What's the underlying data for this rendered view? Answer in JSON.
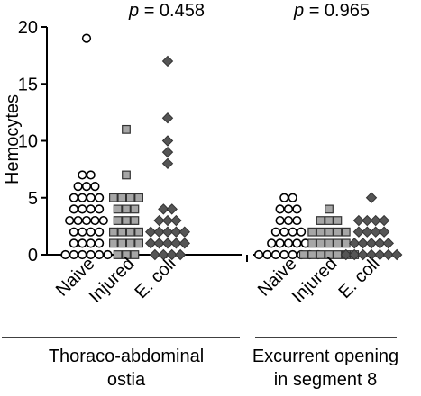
{
  "chart_data": {
    "type": "scatter",
    "ylabel": "Hemocytes",
    "ylim": [
      0,
      20
    ],
    "yticks": [
      "0",
      "5",
      "10",
      "15",
      "20"
    ],
    "grid": false,
    "groups": [
      {
        "label_line1": "Thoraco-abdominal",
        "label_line2": "ostia",
        "p_prefix": "p",
        "p_value": " = 0.458",
        "series": [
          {
            "name": "Naive",
            "marker": "circle",
            "fill": "#ffffff",
            "points": [
              {
                "y": 19,
                "n": 1
              },
              {
                "y": 7,
                "n": 2
              },
              {
                "y": 6,
                "n": 3
              },
              {
                "y": 5,
                "n": 4
              },
              {
                "y": 4,
                "n": 4
              },
              {
                "y": 3,
                "n": 5
              },
              {
                "y": 2,
                "n": 4
              },
              {
                "y": 1,
                "n": 4
              },
              {
                "y": 0,
                "n": 6
              }
            ]
          },
          {
            "name": "Injured",
            "marker": "square",
            "fill": "#a6a6a6",
            "points": [
              {
                "y": 11,
                "n": 1
              },
              {
                "y": 7,
                "n": 1
              },
              {
                "y": 5,
                "n": 4
              },
              {
                "y": 4,
                "n": 3
              },
              {
                "y": 3,
                "n": 3
              },
              {
                "y": 2,
                "n": 4
              },
              {
                "y": 1,
                "n": 4
              },
              {
                "y": 0,
                "n": 3
              }
            ]
          },
          {
            "name": "E. coli",
            "marker": "diamond",
            "fill": "#555555",
            "points": [
              {
                "y": 17,
                "n": 1
              },
              {
                "y": 12,
                "n": 1
              },
              {
                "y": 10,
                "n": 1
              },
              {
                "y": 9,
                "n": 1
              },
              {
                "y": 8,
                "n": 1
              },
              {
                "y": 4,
                "n": 2
              },
              {
                "y": 3,
                "n": 3
              },
              {
                "y": 2,
                "n": 5
              },
              {
                "y": 1,
                "n": 5
              },
              {
                "y": 0,
                "n": 4
              }
            ]
          }
        ]
      },
      {
        "label_line1": "Excurrent opening",
        "label_line2": "in segment 8",
        "p_prefix": "p",
        "p_value": " = 0.965",
        "series": [
          {
            "name": "Naive",
            "marker": "circle",
            "fill": "#ffffff",
            "points": [
              {
                "y": 5,
                "n": 2
              },
              {
                "y": 4,
                "n": 3
              },
              {
                "y": 3,
                "n": 3
              },
              {
                "y": 2,
                "n": 4
              },
              {
                "y": 1,
                "n": 5
              },
              {
                "y": 0,
                "n": 8
              }
            ]
          },
          {
            "name": "Injured",
            "marker": "square",
            "fill": "#a6a6a6",
            "points": [
              {
                "y": 4,
                "n": 1
              },
              {
                "y": 3,
                "n": 3
              },
              {
                "y": 2,
                "n": 5
              },
              {
                "y": 1,
                "n": 5
              },
              {
                "y": 0,
                "n": 7
              }
            ]
          },
          {
            "name": "E. coli",
            "marker": "diamond",
            "fill": "#555555",
            "points": [
              {
                "y": 5,
                "n": 1
              },
              {
                "y": 3,
                "n": 4
              },
              {
                "y": 2,
                "n": 4
              },
              {
                "y": 1,
                "n": 5
              },
              {
                "y": 0,
                "n": 7
              }
            ]
          }
        ]
      }
    ]
  }
}
